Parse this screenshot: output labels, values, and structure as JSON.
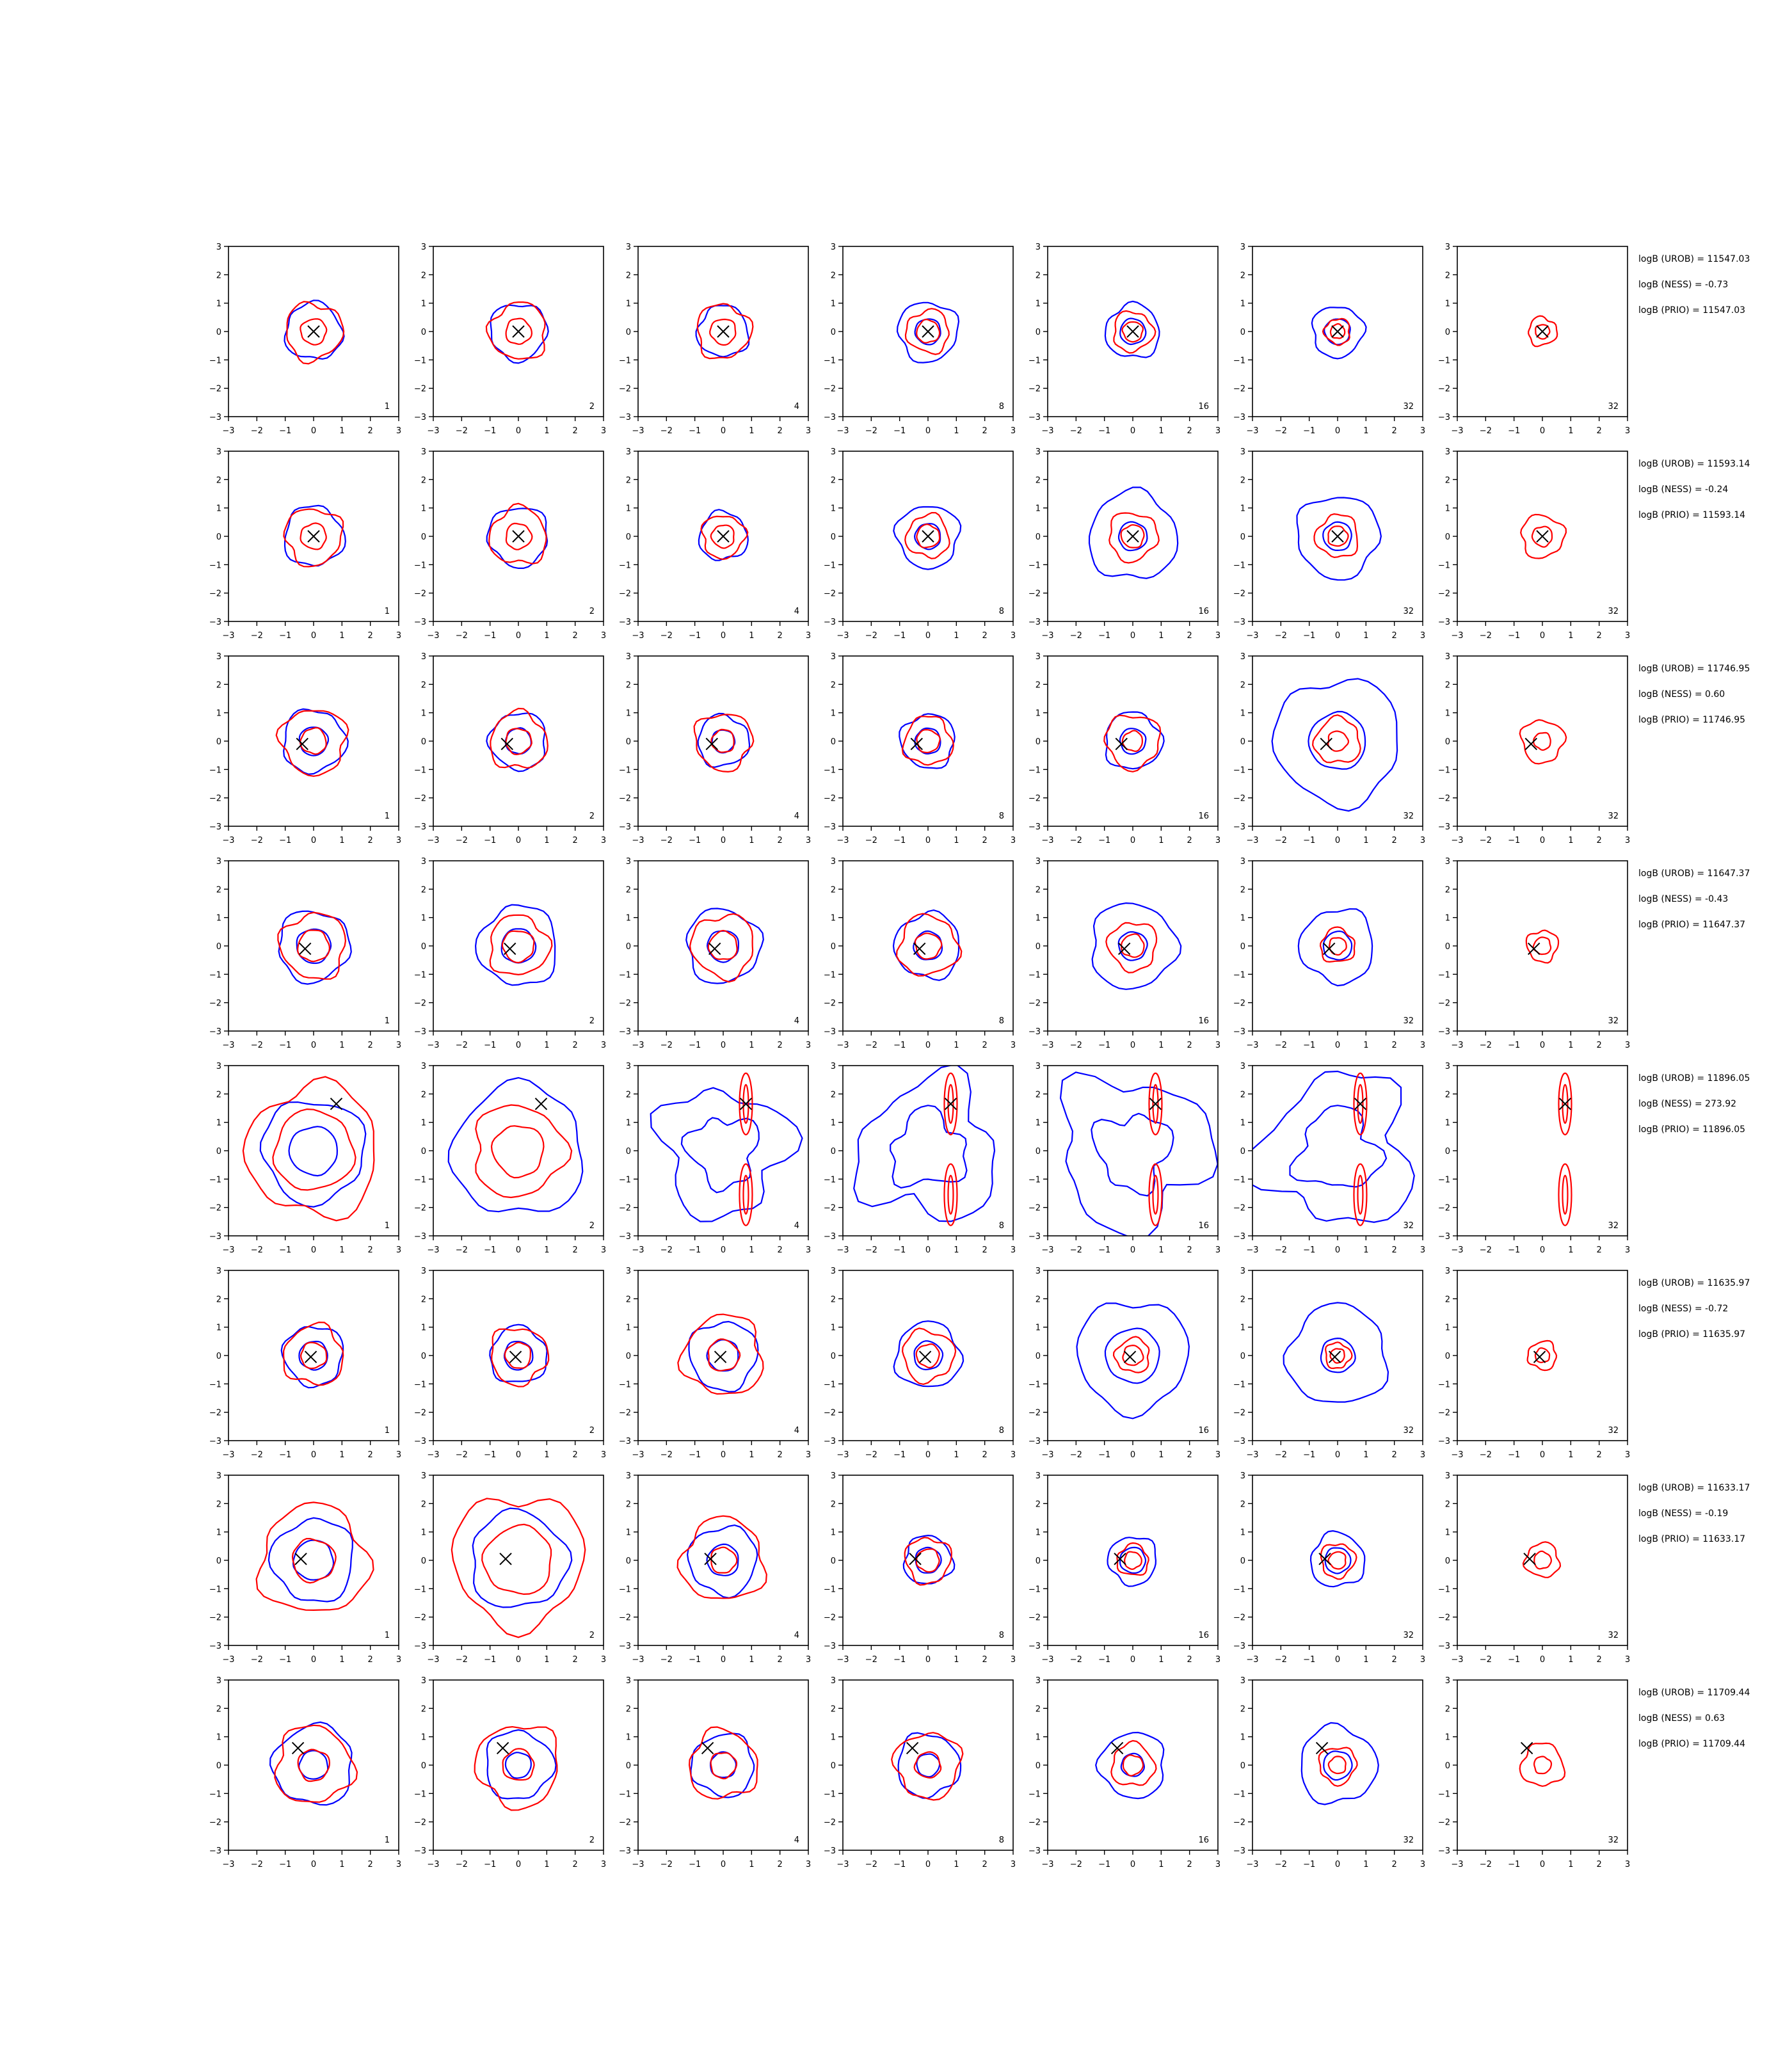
{
  "figure": {
    "type": "contour-grid",
    "columns": 7,
    "rows": 8,
    "column_labels": [
      "1",
      "2",
      "4",
      "8",
      "16",
      "32",
      "32"
    ],
    "colors": {
      "blue": "#0000ff",
      "red": "#ff0000",
      "marker": "#000000",
      "axis": "#000000"
    }
  },
  "chart_data": {
    "type": "contour",
    "xlim": [
      -3,
      3
    ],
    "ylim": [
      -3,
      3
    ],
    "xticks": [
      -3,
      -2,
      -1,
      0,
      1,
      2,
      3
    ],
    "yticks": [
      -3,
      -2,
      -1,
      0,
      1,
      2,
      3
    ],
    "grid": false,
    "rows": [
      {
        "marker": [
          0.0,
          0.0
        ],
        "annotations": [
          "logB (UROB) = 11547.03",
          "logB (NESS) = -0.73",
          "logB (PRIO) = 11547.03"
        ],
        "panels": [
          {
            "label": "1",
            "blue": [
              1.0
            ],
            "red": [
              1.0,
              0.45
            ]
          },
          {
            "label": "2",
            "blue": [
              1.0
            ],
            "red": [
              1.0,
              0.45
            ]
          },
          {
            "label": "4",
            "blue": [
              0.9
            ],
            "red": [
              0.95,
              0.45
            ]
          },
          {
            "label": "8",
            "blue": [
              1.05,
              0.45
            ],
            "red": [
              0.75,
              0.4
            ]
          },
          {
            "label": "16",
            "blue": [
              0.95,
              0.45
            ],
            "red": [
              0.7,
              0.35
            ]
          },
          {
            "label": "32",
            "blue": [
              0.9,
              0.45
            ],
            "red": [
              0.45,
              0.25
            ]
          },
          {
            "label": "32",
            "blue": [],
            "red": [
              0.5,
              0.25
            ]
          }
        ]
      },
      {
        "marker": [
          0.0,
          0.0
        ],
        "annotations": [
          "logB (UROB) = 11593.14",
          "logB (NESS) = -0.24",
          "logB (PRIO) = 11593.14"
        ],
        "panels": [
          {
            "label": "1",
            "blue": [
              1.05
            ],
            "red": [
              1.0,
              0.45
            ]
          },
          {
            "label": "2",
            "blue": [
              1.05
            ],
            "red": [
              1.0,
              0.45
            ]
          },
          {
            "label": "4",
            "blue": [
              0.85
            ],
            "red": [
              0.75,
              0.4
            ]
          },
          {
            "label": "8",
            "blue": [
              1.1,
              0.45
            ],
            "red": [
              0.75,
              0.4
            ]
          },
          {
            "label": "16",
            "blue": [
              1.55,
              0.5
            ],
            "red": [
              0.85,
              0.4
            ]
          },
          {
            "label": "32",
            "blue": [
              1.45,
              0.5
            ],
            "red": [
              0.75,
              0.35
            ]
          },
          {
            "label": "32",
            "blue": [],
            "red": [
              0.75,
              0.35
            ]
          }
        ]
      },
      {
        "marker": [
          -0.4,
          -0.1
        ],
        "annotations": [
          "logB (UROB) = 11746.95",
          "logB (NESS) = 0.60",
          "logB (PRIO) = 11746.95"
        ],
        "panels": [
          {
            "label": "1",
            "blue": [
              1.1,
              0.5
            ],
            "red": [
              1.15,
              0.45
            ]
          },
          {
            "label": "2",
            "blue": [
              1.0,
              0.45
            ],
            "red": [
              1.0,
              0.45
            ]
          },
          {
            "label": "4",
            "blue": [
              0.9,
              0.4
            ],
            "red": [
              1.0,
              0.4
            ]
          },
          {
            "label": "8",
            "blue": [
              0.95,
              0.45
            ],
            "red": [
              0.85,
              0.4
            ]
          },
          {
            "label": "16",
            "blue": [
              1.0,
              0.45
            ],
            "red": [
              0.95,
              0.35
            ]
          },
          {
            "label": "32",
            "blue": [
              2.2,
              1.0
            ],
            "red": [
              0.8,
              0.35
            ]
          },
          {
            "label": "32",
            "blue": [],
            "red": [
              0.75,
              0.3
            ]
          }
        ]
      },
      {
        "marker": [
          -0.3,
          -0.1
        ],
        "annotations": [
          "logB (UROB) = 11647.37",
          "logB (NESS) = -0.43",
          "logB (PRIO) = 11647.37"
        ],
        "panels": [
          {
            "label": "1",
            "blue": [
              1.25,
              0.6
            ],
            "red": [
              1.15,
              0.55
            ]
          },
          {
            "label": "2",
            "blue": [
              1.4,
              0.6
            ],
            "red": [
              1.05,
              0.55
            ]
          },
          {
            "label": "4",
            "blue": [
              1.3,
              0.55
            ],
            "red": [
              1.1,
              0.5
            ]
          },
          {
            "label": "8",
            "blue": [
              1.15,
              0.5
            ],
            "red": [
              1.05,
              0.45
            ]
          },
          {
            "label": "16",
            "blue": [
              1.5,
              0.5
            ],
            "red": [
              0.85,
              0.4
            ]
          },
          {
            "label": "32",
            "blue": [
              1.3,
              0.5
            ],
            "red": [
              0.6,
              0.3
            ]
          },
          {
            "label": "32",
            "blue": [],
            "red": [
              0.55,
              0.3
            ]
          }
        ]
      },
      {
        "marker": [
          0.8,
          1.65
        ],
        "annotations": [
          "logB (UROB) = 11896.05",
          "logB (NESS) = 273.92",
          "logB (PRIO) = 11896.05"
        ],
        "panels": [
          {
            "label": "1",
            "blue": [
              1.8,
              0.85
            ],
            "red": [
              2.3,
              1.4
            ]
          },
          {
            "label": "2",
            "blue": [
              2.3
            ],
            "red": [
              1.6,
              0.9
            ]
          },
          {
            "label": "4",
            "blue": [
              2.2,
              1.2
            ],
            "red": [
              0.25
            ]
          },
          {
            "label": "8",
            "blue": [
              2.4,
              1.3
            ],
            "red": [
              0.2
            ]
          },
          {
            "label": "16",
            "blue": [
              2.6,
              1.3
            ],
            "red": [
              0.15
            ]
          },
          {
            "label": "32",
            "blue": [
              2.6,
              1.4
            ],
            "red": [
              0.15
            ]
          },
          {
            "label": "32",
            "blue": [],
            "red": [
              0.15
            ]
          }
        ]
      },
      {
        "marker": [
          -0.1,
          -0.05
        ],
        "annotations": [
          "logB (UROB) = 11635.97",
          "logB (NESS) = -0.72",
          "logB (PRIO) = 11635.97"
        ],
        "panels": [
          {
            "label": "1",
            "blue": [
              1.05,
              0.5
            ],
            "red": [
              1.05,
              0.45
            ]
          },
          {
            "label": "2",
            "blue": [
              1.0,
              0.5
            ],
            "red": [
              1.0,
              0.45
            ]
          },
          {
            "label": "4",
            "blue": [
              1.2,
              0.55
            ],
            "red": [
              1.4,
              0.55
            ]
          },
          {
            "label": "8",
            "blue": [
              1.15,
              0.5
            ],
            "red": [
              0.9,
              0.4
            ]
          },
          {
            "label": "16",
            "blue": [
              1.95,
              0.95
            ],
            "red": [
              0.6,
              0.35
            ]
          },
          {
            "label": "32",
            "blue": [
              1.75,
              0.6
            ],
            "red": [
              0.45,
              0.25
            ]
          },
          {
            "label": "32",
            "blue": [],
            "red": [
              0.5,
              0.25
            ]
          }
        ]
      },
      {
        "marker": [
          -0.45,
          0.05
        ],
        "annotations": [
          "logB (UROB) = 11633.17",
          "logB (NESS) = -0.19",
          "logB (PRIO) = 11633.17"
        ],
        "panels": [
          {
            "label": "1",
            "blue": [
              1.45,
              0.7
            ],
            "red": [
              1.9,
              0.75
            ]
          },
          {
            "label": "2",
            "blue": [
              1.7
            ],
            "red": [
              2.3,
              1.2
            ]
          },
          {
            "label": "4",
            "blue": [
              1.2,
              0.55
            ],
            "red": [
              1.45,
              0.45
            ]
          },
          {
            "label": "8",
            "blue": [
              0.85,
              0.45
            ],
            "red": [
              0.8,
              0.4
            ]
          },
          {
            "label": "16",
            "blue": [
              0.85,
              0.45
            ],
            "red": [
              0.55,
              0.3
            ]
          },
          {
            "label": "32",
            "blue": [
              0.95,
              0.45
            ],
            "red": [
              0.6,
              0.3
            ]
          },
          {
            "label": "32",
            "blue": [],
            "red": [
              0.6,
              0.3
            ]
          }
        ]
      },
      {
        "marker": [
          -0.55,
          0.6
        ],
        "annotations": [
          "logB (UROB) = 11709.44",
          "logB (NESS) = 0.63",
          "logB (PRIO) = 11709.44"
        ],
        "panels": [
          {
            "label": "1",
            "blue": [
              1.4,
              0.5
            ],
            "red": [
              1.35,
              0.55
            ]
          },
          {
            "label": "2",
            "blue": [
              1.2,
              0.45
            ],
            "red": [
              1.45,
              0.55
            ]
          },
          {
            "label": "4",
            "blue": [
              1.1,
              0.45
            ],
            "red": [
              1.2,
              0.45
            ]
          },
          {
            "label": "8",
            "blue": [
              1.1,
              0.4
            ],
            "red": [
              1.15,
              0.45
            ]
          },
          {
            "label": "16",
            "blue": [
              1.15,
              0.4
            ],
            "red": [
              0.75,
              0.35
            ]
          },
          {
            "label": "32",
            "blue": [
              1.35,
              0.5
            ],
            "red": [
              0.65,
              0.3
            ]
          },
          {
            "label": "32",
            "blue": [],
            "red": [
              0.75,
              0.3
            ]
          }
        ]
      }
    ]
  }
}
